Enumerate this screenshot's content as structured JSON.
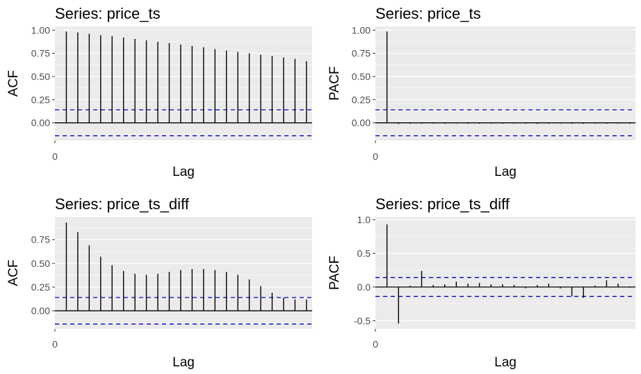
{
  "chart_data": [
    {
      "type": "bar",
      "title": "Series: price_ts",
      "xlabel": "Lag",
      "ylabel": "ACF",
      "xticks": [
        "0"
      ],
      "yticks": [
        "0.00",
        "0.25",
        "0.50",
        "0.75",
        "1.00"
      ],
      "ylim": [
        -0.19,
        1.04
      ],
      "xlim": [
        0,
        22.5
      ],
      "zero_line": true,
      "x": [
        1,
        2,
        3,
        4,
        5,
        6,
        7,
        8,
        9,
        10,
        11,
        12,
        13,
        14,
        15,
        16,
        17,
        18,
        19,
        20,
        21,
        22
      ],
      "values": [
        0.985,
        0.975,
        0.96,
        0.945,
        0.935,
        0.92,
        0.905,
        0.89,
        0.875,
        0.86,
        0.845,
        0.83,
        0.815,
        0.795,
        0.78,
        0.765,
        0.75,
        0.735,
        0.72,
        0.705,
        0.69,
        0.665
      ],
      "confidence_band": 0.14,
      "colors": {
        "bars": "#000000",
        "band": "#0000cc",
        "panel": "#ebebeb",
        "grid": "#ffffff"
      }
    },
    {
      "type": "bar",
      "title": "Series: price_ts",
      "xlabel": "Lag",
      "ylabel": "PACF",
      "xticks": [
        "0"
      ],
      "yticks": [
        "0.00",
        "0.25",
        "0.50",
        "0.75",
        "1.00"
      ],
      "ylim": [
        -0.19,
        1.04
      ],
      "xlim": [
        0,
        22.5
      ],
      "zero_line": true,
      "x": [
        1,
        2,
        3,
        4,
        5,
        6,
        7,
        8,
        9,
        10,
        11,
        12,
        13,
        14,
        15,
        16,
        17,
        18,
        19,
        20,
        21,
        22
      ],
      "values": [
        0.985,
        -0.012,
        -0.01,
        -0.01,
        -0.008,
        -0.01,
        -0.008,
        -0.01,
        -0.01,
        -0.008,
        -0.01,
        -0.008,
        -0.01,
        -0.012,
        -0.01,
        -0.008,
        -0.01,
        -0.01,
        -0.008,
        -0.01,
        -0.008,
        -0.01
      ],
      "confidence_band": 0.14,
      "colors": {
        "bars": "#000000",
        "band": "#0000cc",
        "panel": "#ebebeb",
        "grid": "#ffffff"
      }
    },
    {
      "type": "bar",
      "title": "Series: price_ts_diff",
      "xlabel": "Lag",
      "ylabel": "ACF",
      "xticks": [
        "0"
      ],
      "yticks": [
        "0.00",
        "0.25",
        "0.50",
        "0.75"
      ],
      "ylim": [
        -0.19,
        0.99
      ],
      "xlim": [
        0,
        22.5
      ],
      "zero_line": true,
      "x": [
        1,
        2,
        3,
        4,
        5,
        6,
        7,
        8,
        9,
        10,
        11,
        12,
        13,
        14,
        15,
        16,
        17,
        18,
        19,
        20,
        21,
        22
      ],
      "values": [
        0.93,
        0.83,
        0.69,
        0.57,
        0.48,
        0.42,
        0.39,
        0.38,
        0.39,
        0.41,
        0.43,
        0.44,
        0.44,
        0.43,
        0.41,
        0.38,
        0.33,
        0.26,
        0.19,
        0.14,
        0.12,
        0.12
      ],
      "confidence_band": 0.14,
      "colors": {
        "bars": "#000000",
        "band": "#0000cc",
        "panel": "#ebebeb",
        "grid": "#ffffff"
      }
    },
    {
      "type": "bar",
      "title": "Series: price_ts_diff",
      "xlabel": "Lag",
      "ylabel": "PACF",
      "xticks": [
        "0"
      ],
      "yticks": [
        "-0.5",
        "0.0",
        "0.5",
        "1.0"
      ],
      "ylim": [
        -0.62,
        1.04
      ],
      "xlim": [
        0,
        22.5
      ],
      "zero_line": true,
      "x": [
        1,
        2,
        3,
        4,
        5,
        6,
        7,
        8,
        9,
        10,
        11,
        12,
        13,
        14,
        15,
        16,
        17,
        18,
        19,
        20,
        21,
        22
      ],
      "values": [
        0.93,
        -0.54,
        0.02,
        0.24,
        0.03,
        0.04,
        0.08,
        0.05,
        0.06,
        0.04,
        0.04,
        0.03,
        -0.02,
        0.03,
        0.05,
        -0.02,
        -0.14,
        -0.16,
        0.02,
        0.1,
        0.05,
        -0.01
      ],
      "confidence_band": 0.14,
      "colors": {
        "bars": "#000000",
        "band": "#0000cc",
        "panel": "#ebebeb",
        "grid": "#ffffff"
      }
    }
  ]
}
